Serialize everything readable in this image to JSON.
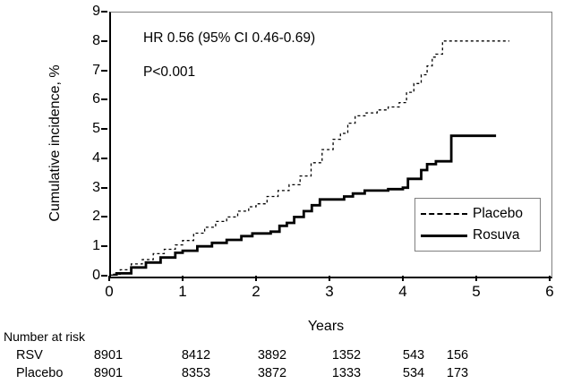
{
  "chart_data": {
    "type": "line",
    "subtype": "kaplan-meier-cumulative-incidence",
    "title": "",
    "xlabel": "Years",
    "ylabel": "Cumulative incidence, %",
    "xlim": [
      0,
      6
    ],
    "ylim": [
      0,
      9
    ],
    "xticks": [
      0,
      1,
      2,
      3,
      4,
      5,
      6
    ],
    "yticks": [
      0,
      1,
      2,
      3,
      4,
      5,
      6,
      7,
      8,
      9
    ],
    "grid": false,
    "legend_position": "inside-lower-right",
    "annotations": [
      "HR 0.56 (95% CI 0.46-0.69)",
      "P<0.001"
    ],
    "series": [
      {
        "name": "Placebo",
        "line_style": "dashed",
        "color": "#000000",
        "points": [
          [
            0,
            0
          ],
          [
            0.06,
            0.05
          ],
          [
            0.15,
            0.2
          ],
          [
            0.3,
            0.4
          ],
          [
            0.45,
            0.55
          ],
          [
            0.6,
            0.75
          ],
          [
            0.75,
            0.9
          ],
          [
            0.9,
            1.05
          ],
          [
            1.0,
            1.2
          ],
          [
            1.15,
            1.45
          ],
          [
            1.3,
            1.65
          ],
          [
            1.45,
            1.85
          ],
          [
            1.6,
            2.0
          ],
          [
            1.75,
            2.2
          ],
          [
            1.9,
            2.35
          ],
          [
            2.0,
            2.45
          ],
          [
            2.15,
            2.7
          ],
          [
            2.3,
            2.9
          ],
          [
            2.45,
            3.1
          ],
          [
            2.6,
            3.4
          ],
          [
            2.75,
            3.85
          ],
          [
            2.9,
            4.3
          ],
          [
            3.05,
            4.65
          ],
          [
            3.15,
            4.85
          ],
          [
            3.25,
            5.2
          ],
          [
            3.35,
            5.45
          ],
          [
            3.5,
            5.55
          ],
          [
            3.65,
            5.65
          ],
          [
            3.8,
            5.75
          ],
          [
            3.95,
            5.9
          ],
          [
            4.05,
            6.25
          ],
          [
            4.15,
            6.55
          ],
          [
            4.25,
            6.85
          ],
          [
            4.33,
            7.15
          ],
          [
            4.4,
            7.45
          ],
          [
            4.45,
            7.55
          ],
          [
            4.54,
            8.0
          ],
          [
            5.45,
            8.0
          ]
        ]
      },
      {
        "name": "Rosuva",
        "line_style": "solid",
        "color": "#000000",
        "points": [
          [
            0,
            0
          ],
          [
            0.1,
            0.08
          ],
          [
            0.3,
            0.28
          ],
          [
            0.5,
            0.45
          ],
          [
            0.7,
            0.62
          ],
          [
            0.9,
            0.78
          ],
          [
            1.0,
            0.85
          ],
          [
            1.2,
            1.0
          ],
          [
            1.4,
            1.12
          ],
          [
            1.6,
            1.22
          ],
          [
            1.8,
            1.35
          ],
          [
            1.95,
            1.44
          ],
          [
            2.2,
            1.5
          ],
          [
            2.32,
            1.7
          ],
          [
            2.42,
            1.8
          ],
          [
            2.52,
            2.0
          ],
          [
            2.65,
            2.2
          ],
          [
            2.76,
            2.4
          ],
          [
            2.87,
            2.6
          ],
          [
            3.2,
            2.7
          ],
          [
            3.32,
            2.8
          ],
          [
            3.48,
            2.9
          ],
          [
            3.8,
            2.95
          ],
          [
            4.0,
            3.0
          ],
          [
            4.07,
            3.3
          ],
          [
            4.25,
            3.6
          ],
          [
            4.33,
            3.8
          ],
          [
            4.45,
            3.9
          ],
          [
            4.66,
            4.77
          ],
          [
            5.27,
            4.77
          ]
        ]
      }
    ]
  },
  "legend": {
    "items": [
      {
        "label": "Placebo",
        "line_style": "dashed"
      },
      {
        "label": "Rosuva",
        "line_style": "solid"
      }
    ]
  },
  "risk_table": {
    "title": "Number at risk",
    "rows": [
      {
        "label": "RSV",
        "values": [
          "8901",
          "8412",
          "3892",
          "1352",
          "543",
          "156"
        ]
      },
      {
        "label": "Placebo",
        "values": [
          "8901",
          "8353",
          "3872",
          "1333",
          "534",
          "173"
        ]
      }
    ]
  },
  "colors": {
    "curve": "#000000",
    "frame": "#7f7f7f",
    "axis": "#000000",
    "text": "#000000",
    "background": "#ffffff"
  }
}
